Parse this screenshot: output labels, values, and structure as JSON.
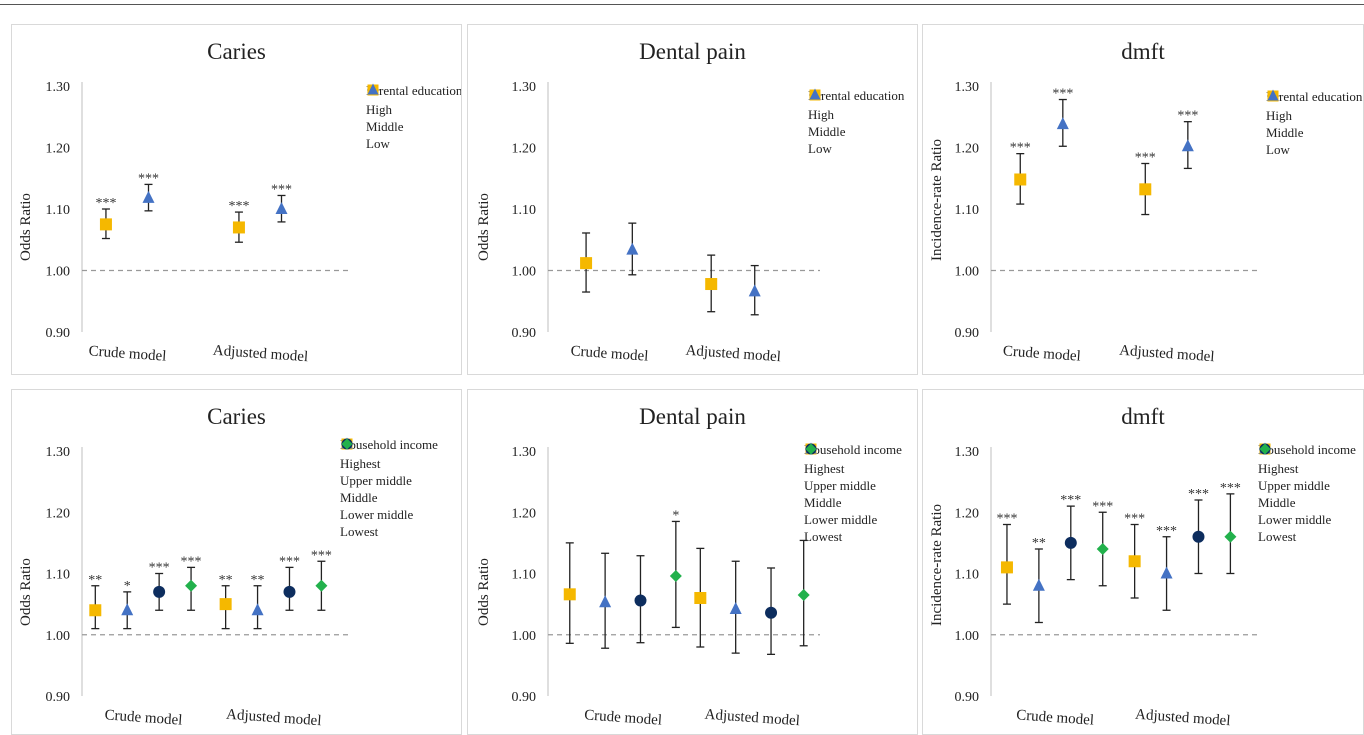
{
  "legend_titles": {
    "education": "Parental education",
    "income": "Household income"
  },
  "colors": {
    "high": "#999999",
    "middle_edu": "#F5B800",
    "low_edu": "#4472C4",
    "upper_middle": "#F5B800",
    "middle": "#4472C4",
    "lower_middle": "#0D2D5E",
    "lowest": "#22B14C",
    "errorbar": "#222222",
    "refline": "#999999"
  },
  "chart_data": [
    {
      "type": "scatter",
      "title": "Caries",
      "ylabel": "Odds Ratio",
      "ylim": [
        0.9,
        1.3
      ],
      "yticks": [
        "0.90",
        "1.00",
        "1.10",
        "1.20",
        "1.30"
      ],
      "categories": [
        "Crude model",
        "Adjusted model"
      ],
      "reference_line": 1.0,
      "legend_title": "Parental education",
      "legend": [
        "High",
        "Middle",
        "Low"
      ],
      "series": [
        {
          "name": "Middle",
          "marker": "square",
          "color": "#F5B800",
          "values": [
            1.075,
            1.07
          ],
          "lower": [
            1.052,
            1.046
          ],
          "upper": [
            1.1,
            1.095
          ],
          "sig": [
            "***",
            "***"
          ]
        },
        {
          "name": "Low",
          "marker": "triangle",
          "color": "#4472C4",
          "values": [
            1.118,
            1.1
          ],
          "lower": [
            1.097,
            1.079
          ],
          "upper": [
            1.14,
            1.122
          ],
          "sig": [
            "***",
            "***"
          ]
        }
      ]
    },
    {
      "type": "scatter",
      "title": "Dental pain",
      "ylabel": "Odds Ratio",
      "ylim": [
        0.9,
        1.3
      ],
      "yticks": [
        "0.90",
        "1.00",
        "1.10",
        "1.20",
        "1.30"
      ],
      "categories": [
        "Crude model",
        "Adjusted model"
      ],
      "reference_line": 1.0,
      "legend_title": "Parental education",
      "legend": [
        "High",
        "Middle",
        "Low"
      ],
      "series": [
        {
          "name": "Middle",
          "marker": "square",
          "color": "#F5B800",
          "values": [
            1.012,
            0.978
          ],
          "lower": [
            0.965,
            0.933
          ],
          "upper": [
            1.061,
            1.025
          ],
          "sig": [
            "",
            ""
          ]
        },
        {
          "name": "Low",
          "marker": "triangle",
          "color": "#4472C4",
          "values": [
            1.034,
            0.966
          ],
          "lower": [
            0.993,
            0.928
          ],
          "upper": [
            1.077,
            1.008
          ],
          "sig": [
            "",
            ""
          ]
        }
      ]
    },
    {
      "type": "scatter",
      "title": "dmft",
      "ylabel": "Incidence-rate Ratio",
      "ylim": [
        0.9,
        1.3
      ],
      "yticks": [
        "0.90",
        "1.00",
        "1.10",
        "1.20",
        "1.30"
      ],
      "categories": [
        "Crude model",
        "Adjusted model"
      ],
      "reference_line": 1.0,
      "legend_title": "Parental education",
      "legend": [
        "High",
        "Middle",
        "Low"
      ],
      "series": [
        {
          "name": "Middle",
          "marker": "square",
          "color": "#F5B800",
          "values": [
            1.148,
            1.132
          ],
          "lower": [
            1.108,
            1.091
          ],
          "upper": [
            1.19,
            1.174
          ],
          "sig": [
            "***",
            "***"
          ]
        },
        {
          "name": "Low",
          "marker": "triangle",
          "color": "#4472C4",
          "values": [
            1.238,
            1.202
          ],
          "lower": [
            1.202,
            1.166
          ],
          "upper": [
            1.278,
            1.242
          ],
          "sig": [
            "***",
            "***"
          ]
        }
      ]
    },
    {
      "type": "scatter",
      "title": "Caries",
      "ylabel": "Odds Ratio",
      "ylim": [
        0.9,
        1.3
      ],
      "yticks": [
        "0.90",
        "1.00",
        "1.10",
        "1.20",
        "1.30"
      ],
      "categories": [
        "Crude model",
        "Adjusted model"
      ],
      "reference_line": 1.0,
      "legend_title": "Household income",
      "legend": [
        "Highest",
        "Upper middle",
        "Middle",
        "Lower middle",
        "Lowest"
      ],
      "series": [
        {
          "name": "Upper middle",
          "marker": "square",
          "color": "#F5B800",
          "values": [
            1.04,
            1.05
          ],
          "lower": [
            1.01,
            1.01
          ],
          "upper": [
            1.08,
            1.08
          ],
          "sig": [
            "**",
            "**"
          ]
        },
        {
          "name": "Middle",
          "marker": "triangle",
          "color": "#4472C4",
          "values": [
            1.04,
            1.04
          ],
          "lower": [
            1.01,
            1.01
          ],
          "upper": [
            1.07,
            1.08
          ],
          "sig": [
            "*",
            "**"
          ]
        },
        {
          "name": "Lower middle",
          "marker": "circle",
          "color": "#0D2D5E",
          "values": [
            1.07,
            1.07
          ],
          "lower": [
            1.04,
            1.04
          ],
          "upper": [
            1.1,
            1.11
          ],
          "sig": [
            "***",
            "***"
          ]
        },
        {
          "name": "Lowest",
          "marker": "diamond",
          "color": "#22B14C",
          "values": [
            1.08,
            1.08
          ],
          "lower": [
            1.04,
            1.04
          ],
          "upper": [
            1.11,
            1.12
          ],
          "sig": [
            "***",
            "***"
          ]
        }
      ]
    },
    {
      "type": "scatter",
      "title": "Dental pain",
      "ylabel": "Odds Ratio",
      "ylim": [
        0.9,
        1.3
      ],
      "yticks": [
        "0.90",
        "1.00",
        "1.10",
        "1.20",
        "1.30"
      ],
      "categories": [
        "Crude model",
        "Adjusted model"
      ],
      "reference_line": 1.0,
      "legend_title": "Household income",
      "legend": [
        "Highest",
        "Upper middle",
        "Middle",
        "Lower middle",
        "Lowest"
      ],
      "series": [
        {
          "name": "Upper middle",
          "marker": "square",
          "color": "#F5B800",
          "values": [
            1.066,
            1.06
          ],
          "lower": [
            0.986,
            0.98
          ],
          "upper": [
            1.15,
            1.141
          ],
          "sig": [
            "",
            ""
          ]
        },
        {
          "name": "Middle",
          "marker": "triangle",
          "color": "#4472C4",
          "values": [
            1.053,
            1.042
          ],
          "lower": [
            0.978,
            0.97
          ],
          "upper": [
            1.133,
            1.12
          ],
          "sig": [
            "",
            ""
          ]
        },
        {
          "name": "Lower middle",
          "marker": "circle",
          "color": "#0D2D5E",
          "values": [
            1.056,
            1.036
          ],
          "lower": [
            0.987,
            0.968
          ],
          "upper": [
            1.129,
            1.109
          ],
          "sig": [
            "",
            ""
          ]
        },
        {
          "name": "Lowest",
          "marker": "diamond",
          "color": "#22B14C",
          "values": [
            1.096,
            1.065
          ],
          "lower": [
            1.012,
            0.982
          ],
          "upper": [
            1.185,
            1.154
          ],
          "sig": [
            "*",
            ""
          ]
        }
      ]
    },
    {
      "type": "scatter",
      "title": "dmft",
      "ylabel": "Incidence-rate Ratio",
      "ylim": [
        0.9,
        1.3
      ],
      "yticks": [
        "0.90",
        "1.00",
        "1.10",
        "1.20",
        "1.30"
      ],
      "categories": [
        "Crude model",
        "Adjusted model"
      ],
      "reference_line": 1.0,
      "legend_title": "Household income",
      "legend": [
        "Highest",
        "Upper middle",
        "Middle",
        "Lower middle",
        "Lowest"
      ],
      "series": [
        {
          "name": "Upper middle",
          "marker": "square",
          "color": "#F5B800",
          "values": [
            1.11,
            1.12
          ],
          "lower": [
            1.05,
            1.06
          ],
          "upper": [
            1.18,
            1.18
          ],
          "sig": [
            "***",
            "***"
          ]
        },
        {
          "name": "Middle",
          "marker": "triangle",
          "color": "#4472C4",
          "values": [
            1.08,
            1.1
          ],
          "lower": [
            1.02,
            1.04
          ],
          "upper": [
            1.14,
            1.16
          ],
          "sig": [
            "**",
            "***"
          ]
        },
        {
          "name": "Lower middle",
          "marker": "circle",
          "color": "#0D2D5E",
          "values": [
            1.15,
            1.16
          ],
          "lower": [
            1.09,
            1.1
          ],
          "upper": [
            1.21,
            1.22
          ],
          "sig": [
            "***",
            "***"
          ]
        },
        {
          "name": "Lowest",
          "marker": "diamond",
          "color": "#22B14C",
          "values": [
            1.14,
            1.16
          ],
          "lower": [
            1.08,
            1.1
          ],
          "upper": [
            1.2,
            1.23
          ],
          "sig": [
            "***",
            "***"
          ]
        }
      ]
    }
  ]
}
